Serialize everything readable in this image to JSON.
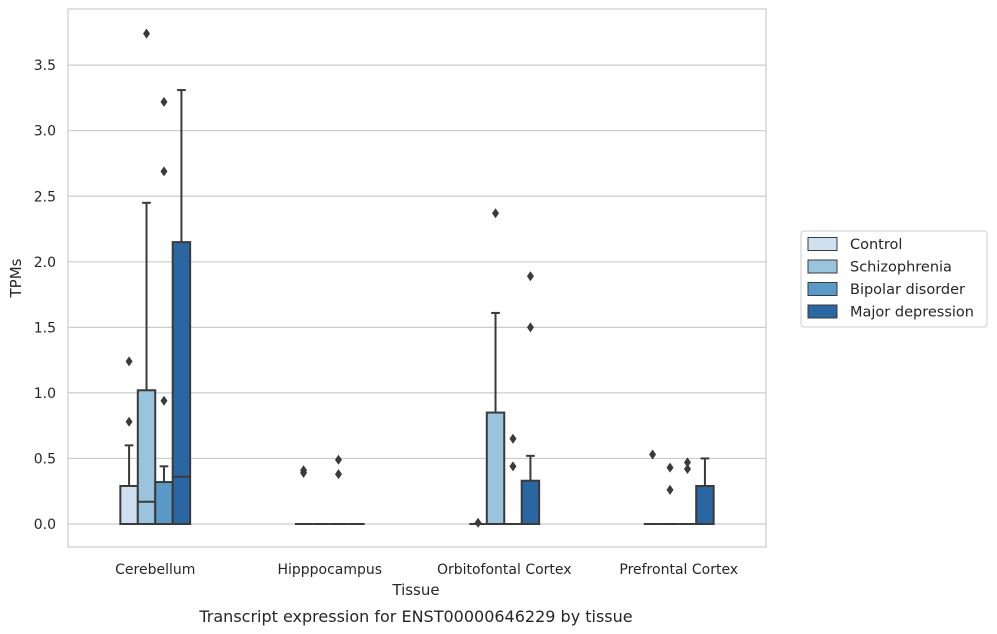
{
  "chart_data": {
    "type": "box",
    "caption": "Transcript expression for ENST00000646229 by tissue",
    "xlabel": "Tissue",
    "ylabel": "TPMs",
    "ylim": [
      -0.18,
      3.9
    ],
    "yticks": [
      "0.0",
      "0.5",
      "1.0",
      "1.5",
      "2.0",
      "2.5",
      "3.0",
      "3.5"
    ],
    "grid": "horizontal",
    "legend_position": "right",
    "categories": [
      "Cerebellum",
      "Hipppocampus",
      "Orbitofontal Cortex",
      "Prefrontal Cortex"
    ],
    "series": [
      {
        "name": "Control",
        "color": "#cfe0f0",
        "boxes": [
          {
            "q1": 0.0,
            "median": 0.0,
            "q3": 0.29,
            "whisker_low": 0.0,
            "whisker_high": 0.6,
            "outliers": [
              0.78,
              1.24
            ]
          },
          {
            "q1": 0.0,
            "median": 0.0,
            "q3": 0.0,
            "whisker_low": 0.0,
            "whisker_high": 0.0,
            "outliers": [
              0.39,
              0.41
            ]
          },
          {
            "q1": 0.0,
            "median": 0.0,
            "q3": 0.0,
            "whisker_low": 0.0,
            "whisker_high": 0.0,
            "outliers": [
              0.01
            ]
          },
          {
            "q1": 0.0,
            "median": 0.0,
            "q3": 0.0,
            "whisker_low": 0.0,
            "whisker_high": 0.0,
            "outliers": [
              0.53
            ]
          }
        ]
      },
      {
        "name": "Schizophrenia",
        "color": "#9ac4dd",
        "boxes": [
          {
            "q1": 0.0,
            "median": 0.17,
            "q3": 1.02,
            "whisker_low": 0.0,
            "whisker_high": 2.45,
            "outliers": [
              3.74
            ]
          },
          {
            "q1": 0.0,
            "median": 0.0,
            "q3": 0.0,
            "whisker_low": 0.0,
            "whisker_high": 0.0,
            "outliers": []
          },
          {
            "q1": 0.0,
            "median": 0.0,
            "q3": 0.85,
            "whisker_low": 0.0,
            "whisker_high": 1.61,
            "outliers": [
              2.37
            ]
          },
          {
            "q1": 0.0,
            "median": 0.0,
            "q3": 0.0,
            "whisker_low": 0.0,
            "whisker_high": 0.0,
            "outliers": [
              0.26,
              0.43
            ]
          }
        ]
      },
      {
        "name": "Bipolar disorder",
        "color": "#5a9ac9",
        "boxes": [
          {
            "q1": 0.0,
            "median": 0.0,
            "q3": 0.32,
            "whisker_low": 0.0,
            "whisker_high": 0.44,
            "outliers": [
              0.94,
              2.69,
              3.22
            ]
          },
          {
            "q1": 0.0,
            "median": 0.0,
            "q3": 0.0,
            "whisker_low": 0.0,
            "whisker_high": 0.0,
            "outliers": [
              0.38,
              0.49
            ]
          },
          {
            "q1": 0.0,
            "median": 0.0,
            "q3": 0.0,
            "whisker_low": 0.0,
            "whisker_high": 0.0,
            "outliers": [
              0.44,
              0.65
            ]
          },
          {
            "q1": 0.0,
            "median": 0.0,
            "q3": 0.0,
            "whisker_low": 0.0,
            "whisker_high": 0.0,
            "outliers": [
              0.42,
              0.47
            ]
          }
        ]
      },
      {
        "name": "Major depression",
        "color": "#2a66a2",
        "boxes": [
          {
            "q1": 0.0,
            "median": 0.36,
            "q3": 2.15,
            "whisker_low": 0.0,
            "whisker_high": 3.31,
            "outliers": []
          },
          {
            "q1": 0.0,
            "median": 0.0,
            "q3": 0.0,
            "whisker_low": 0.0,
            "whisker_high": 0.0,
            "outliers": []
          },
          {
            "q1": 0.0,
            "median": 0.0,
            "q3": 0.33,
            "whisker_low": 0.0,
            "whisker_high": 0.52,
            "outliers": [
              1.5,
              1.89
            ]
          },
          {
            "q1": 0.0,
            "median": 0.0,
            "q3": 0.29,
            "whisker_low": 0.0,
            "whisker_high": 0.5,
            "outliers": []
          }
        ]
      }
    ]
  }
}
